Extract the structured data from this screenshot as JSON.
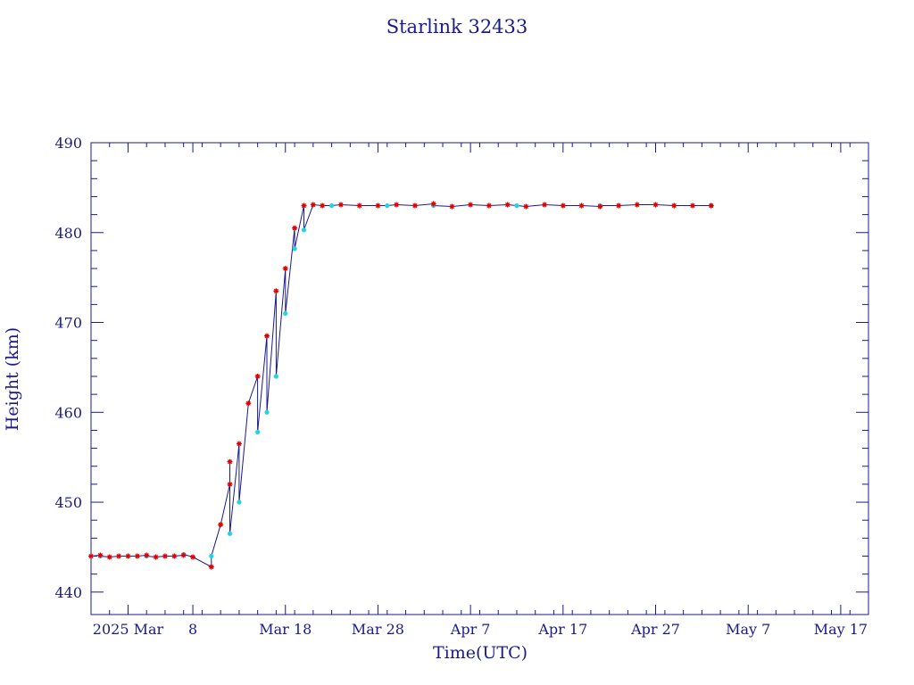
{
  "chart_data": {
    "type": "scatter",
    "title": "Starlink 32433",
    "xlabel": "Time(UTC)",
    "ylabel": "Height (km)",
    "x_axis_kind": "date",
    "xlim": [
      "2025-02-25",
      "2025-05-20"
    ],
    "ylim": [
      437.5,
      490
    ],
    "x_ticks": [
      {
        "date": "2025-03-01",
        "label": "2025 Mar"
      },
      {
        "date": "2025-03-08",
        "label": "8"
      },
      {
        "date": "2025-03-18",
        "label": "Mar 18"
      },
      {
        "date": "2025-03-28",
        "label": "Mar 28"
      },
      {
        "date": "2025-04-07",
        "label": "Apr  7"
      },
      {
        "date": "2025-04-17",
        "label": "Apr 17"
      },
      {
        "date": "2025-04-27",
        "label": "Apr 27"
      },
      {
        "date": "2025-05-07",
        "label": "May  7"
      },
      {
        "date": "2025-05-17",
        "label": "May 17"
      }
    ],
    "y_ticks": [
      440,
      450,
      460,
      470,
      480,
      490
    ],
    "grid": false,
    "colors": {
      "axes": "#1a1a8c",
      "line": "#1a1a8c",
      "primary_points": "#e00000",
      "secondary_points": "#22d3e6"
    },
    "series": [
      {
        "marker": "red-asterisk",
        "x": [
          "2025-02-25",
          "2025-02-26",
          "2025-02-27",
          "2025-02-28",
          "2025-03-01",
          "2025-03-02",
          "2025-03-03",
          "2025-03-04",
          "2025-03-05",
          "2025-03-06",
          "2025-03-07",
          "2025-03-08",
          "2025-03-10",
          "2025-03-11",
          "2025-03-12",
          "2025-03-12",
          "2025-03-13",
          "2025-03-14",
          "2025-03-15",
          "2025-03-16",
          "2025-03-17",
          "2025-03-18",
          "2025-03-19",
          "2025-03-20",
          "2025-03-21",
          "2025-03-22",
          "2025-03-24",
          "2025-03-26",
          "2025-03-28",
          "2025-03-30",
          "2025-04-01",
          "2025-04-03",
          "2025-04-05",
          "2025-04-07",
          "2025-04-09",
          "2025-04-11",
          "2025-04-13",
          "2025-04-15",
          "2025-04-17",
          "2025-04-19",
          "2025-04-21",
          "2025-04-23",
          "2025-04-25",
          "2025-04-27",
          "2025-04-29",
          "2025-05-01",
          "2025-05-03"
        ],
        "y": [
          444.0,
          444.1,
          443.9,
          444.0,
          444.0,
          444.0,
          444.1,
          443.9,
          444.0,
          444.0,
          444.1,
          443.9,
          442.8,
          447.5,
          452.0,
          454.5,
          456.5,
          461.0,
          464.0,
          468.5,
          473.5,
          476.0,
          480.5,
          483.0,
          483.1,
          483.0,
          483.1,
          483.0,
          483.0,
          483.1,
          483.0,
          483.2,
          482.9,
          483.1,
          483.0,
          483.1,
          482.9,
          483.1,
          483.0,
          483.0,
          482.9,
          483.0,
          483.1,
          483.1,
          483.0,
          483.0,
          483.0
        ]
      },
      {
        "marker": "cyan-dot",
        "x": [
          "2025-02-26",
          "2025-03-03",
          "2025-03-07",
          "2025-03-10",
          "2025-03-12",
          "2025-03-13",
          "2025-03-15",
          "2025-03-16",
          "2025-03-17",
          "2025-03-18",
          "2025-03-19",
          "2025-03-20",
          "2025-03-23",
          "2025-03-29",
          "2025-04-03",
          "2025-04-12",
          "2025-04-21",
          "2025-05-03"
        ],
        "y": [
          444.0,
          444.0,
          444.2,
          444.0,
          446.5,
          450.0,
          457.8,
          460.0,
          464.0,
          471.0,
          478.2,
          480.3,
          483.0,
          483.0,
          483.0,
          483.0,
          483.0,
          483.0
        ]
      }
    ]
  }
}
